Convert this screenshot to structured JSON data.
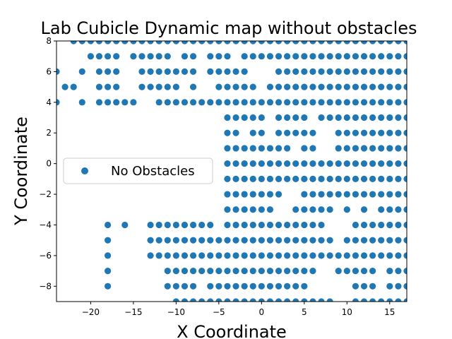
{
  "chart_data": {
    "type": "scatter",
    "title": "Lab Cubicle Dynamic map without obstacles",
    "xlabel": "X Coordinate",
    "ylabel": "Y Coordinate",
    "xlim": [
      -24,
      17
    ],
    "ylim": [
      -9,
      8
    ],
    "xticks": [
      -20,
      -15,
      -10,
      -5,
      0,
      5,
      10,
      15
    ],
    "yticks": [
      -8,
      -6,
      -4,
      -2,
      0,
      2,
      4,
      6,
      8
    ],
    "grid": false,
    "legend_placement": "center-left",
    "marker_color": "#1f77b4",
    "series": [
      {
        "name": "No Obstacles",
        "rows": [
          {
            "y": 8,
            "x": [
              -22,
              -21,
              -20,
              -19,
              -18,
              -17,
              -16,
              -15,
              -14,
              -13,
              -12,
              -11,
              -10,
              -9,
              -8,
              -7,
              -6,
              -5,
              -4,
              -3,
              -2,
              -1,
              0,
              1,
              2,
              3,
              4,
              5,
              6,
              7,
              8,
              9,
              10,
              11,
              12,
              13,
              14,
              15,
              16,
              17
            ]
          },
          {
            "y": 7,
            "x": [
              -20,
              -19,
              -18,
              -17,
              -15,
              -14,
              -13,
              -12,
              -11,
              -9,
              -8,
              -6,
              -5,
              -4,
              -2,
              -1,
              0,
              1,
              2,
              3,
              4,
              5,
              6,
              7,
              8,
              9,
              10,
              11,
              12,
              13,
              14,
              15,
              16,
              17
            ]
          },
          {
            "y": 6,
            "x": [
              -24,
              -21,
              -19,
              -18,
              -17,
              -14,
              -13,
              -12,
              -11,
              -10,
              -9,
              -8,
              -6,
              -5,
              -4,
              -3,
              -2,
              2,
              3,
              4,
              5,
              6,
              7,
              8,
              9,
              10,
              11,
              12,
              13,
              14,
              15,
              16,
              17
            ]
          },
          {
            "y": 5,
            "x": [
              -23,
              -22,
              -19,
              -18,
              -17,
              -14,
              -13,
              -12,
              -11,
              -10,
              -8,
              -5,
              -4,
              -3,
              -2,
              -1,
              1,
              2,
              3,
              4,
              5,
              6,
              7,
              8,
              9,
              10,
              11,
              12,
              13,
              14,
              15,
              16,
              17
            ]
          },
          {
            "y": 4,
            "x": [
              -24,
              -21,
              -19,
              -18,
              -17,
              -16,
              -15,
              -12,
              -11,
              -10,
              -9,
              -8,
              -7,
              -6,
              -5,
              -4,
              -3,
              -2,
              -1,
              0,
              1,
              2,
              3,
              4,
              5,
              6,
              7,
              8,
              9,
              10,
              11,
              12,
              13,
              14,
              15,
              16,
              17
            ]
          },
          {
            "y": 3,
            "x": [
              -4,
              -3,
              -2,
              -1,
              0,
              2,
              3,
              4,
              5,
              7,
              8,
              9,
              10,
              11,
              12,
              13,
              14,
              15,
              16,
              17
            ]
          },
          {
            "y": 2,
            "x": [
              -4,
              -3,
              -1,
              0,
              2,
              3,
              4,
              5,
              6,
              9,
              10,
              11,
              12,
              13,
              14,
              15,
              16,
              17
            ]
          },
          {
            "y": 1,
            "x": [
              -4,
              -3,
              -2,
              -1,
              0,
              1,
              2,
              3,
              5,
              6,
              9,
              10,
              11,
              12,
              13,
              14,
              15,
              16,
              17
            ]
          },
          {
            "y": 0,
            "x": [
              -4,
              -3,
              -2,
              -1,
              0,
              1,
              2,
              3,
              4,
              5,
              6,
              7,
              8,
              9,
              10,
              11,
              12,
              13,
              14,
              15,
              16,
              17
            ]
          },
          {
            "y": -1,
            "x": [
              -4,
              -3,
              -2,
              -1,
              0,
              1,
              2,
              3,
              4,
              5,
              6,
              7,
              8,
              9,
              10,
              11,
              12,
              13,
              14,
              15,
              16,
              17
            ]
          },
          {
            "y": -2,
            "x": [
              -4,
              -3,
              -2,
              -1,
              0,
              1,
              2,
              5,
              6,
              7,
              8,
              9,
              10,
              11,
              12,
              13,
              14,
              15,
              16,
              17
            ]
          },
          {
            "y": -3,
            "x": [
              -4,
              -3,
              -2,
              -1,
              0,
              1,
              4,
              5,
              6,
              7,
              8,
              10,
              12,
              14,
              15,
              16,
              17
            ]
          },
          {
            "y": -4,
            "x": [
              -18,
              -16,
              -13,
              -12,
              -11,
              -10,
              -9,
              -8,
              -7,
              -6,
              -4,
              -3,
              -2,
              -1,
              0,
              1,
              2,
              3,
              4,
              5,
              6,
              7,
              11,
              12,
              13,
              14,
              15,
              16,
              17
            ]
          },
          {
            "y": -5,
            "x": [
              -18,
              -13,
              -12,
              -11,
              -10,
              -9,
              -8,
              -7,
              -6,
              -5,
              -4,
              -3,
              -2,
              -1,
              0,
              1,
              2,
              3,
              4,
              5,
              6,
              7,
              8,
              10,
              11,
              12,
              13,
              14,
              15,
              16,
              17
            ]
          },
          {
            "y": -6,
            "x": [
              -18,
              -13,
              -12,
              -11,
              -10,
              -9,
              -8,
              -7,
              -6,
              -5,
              -4,
              -3,
              -2,
              -1,
              0,
              1,
              2,
              3,
              4,
              5,
              6,
              7,
              8,
              9,
              10,
              11,
              12,
              13,
              14,
              15,
              16,
              17
            ]
          },
          {
            "y": -7,
            "x": [
              -18,
              -11,
              -10,
              -9,
              -8,
              -7,
              -6,
              -5,
              -4,
              -3,
              -2,
              -1,
              0,
              1,
              2,
              3,
              4,
              5,
              6,
              9,
              10,
              11,
              12,
              13,
              15,
              16,
              17
            ]
          },
          {
            "y": -8,
            "x": [
              -18,
              -11,
              -10,
              -9,
              -8,
              -6,
              -5,
              -4,
              -3,
              -2,
              -1,
              0,
              1,
              2,
              3,
              4,
              5,
              11,
              12,
              13,
              15,
              16,
              17
            ]
          },
          {
            "y": -9,
            "x": [
              -10,
              -9,
              -8,
              -7,
              -6,
              -5,
              -4,
              -3,
              -2,
              -1,
              0,
              1,
              2,
              3,
              4,
              5,
              6,
              7,
              8,
              11,
              12,
              13,
              14,
              15,
              16,
              17
            ]
          }
        ]
      }
    ]
  }
}
